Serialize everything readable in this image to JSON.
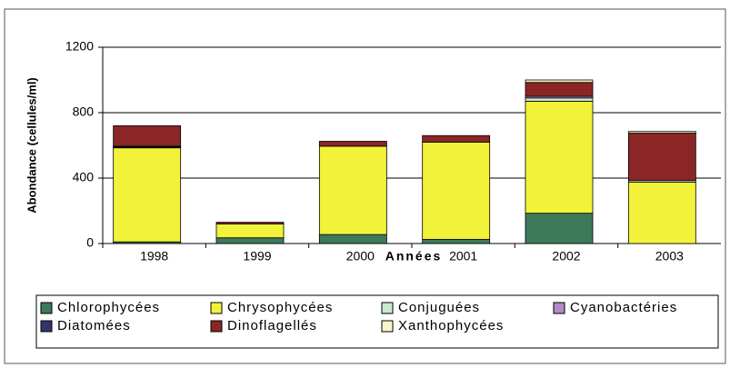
{
  "chart_data": {
    "type": "stacked_bar",
    "categories": [
      "1998",
      "1999",
      "2000",
      "2001",
      "2002",
      "2003"
    ],
    "x_label": "Années",
    "y_label": "Abondance (cellules/ml)",
    "ylim": [
      0,
      1200
    ],
    "yticks": [
      0,
      400,
      800,
      1200
    ],
    "grid": true,
    "series": [
      {
        "name": "Chlorophycées",
        "color": "#3d7a5c",
        "values": [
          10,
          35,
          55,
          25,
          185,
          0
        ]
      },
      {
        "name": "Chrysophycées",
        "color": "#f2f23a",
        "values": [
          575,
          85,
          540,
          595,
          685,
          375
        ]
      },
      {
        "name": "Conjuguées",
        "color": "#c6ead0",
        "values": [
          0,
          0,
          0,
          0,
          20,
          10
        ]
      },
      {
        "name": "Cyanobactéries",
        "color": "#b58ac8",
        "values": [
          5,
          0,
          0,
          0,
          10,
          0
        ]
      },
      {
        "name": "Diatomées",
        "color": "#33336e",
        "values": [
          5,
          0,
          0,
          0,
          0,
          0
        ]
      },
      {
        "name": "Dinoflagellés",
        "color": "#8a2626",
        "values": [
          125,
          10,
          30,
          40,
          85,
          290
        ]
      },
      {
        "name": "Xanthophycées",
        "color": "#fbf6c8",
        "values": [
          0,
          0,
          0,
          0,
          15,
          10
        ]
      }
    ]
  }
}
